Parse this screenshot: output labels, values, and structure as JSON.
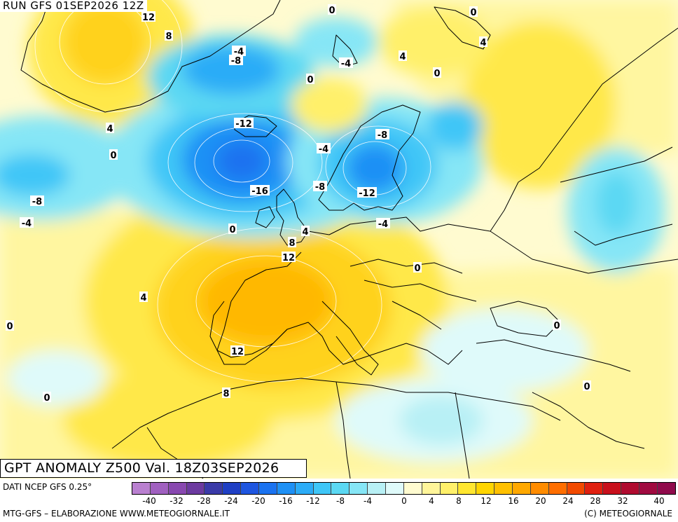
{
  "run_label": "RUN GFS 01SEP2026 12Z",
  "title": "GPT ANOMALY Z500 Val. 18Z03SEP2026",
  "credits": {
    "data_source": "DATI NCEP GFS 0.25°",
    "processing": "MTG-GFS – ELABORAZIONE WWW.METEOGIORNALE.IT",
    "copyright": "(C) METEOGIORNALE"
  },
  "legend": {
    "colors": [
      "#b980d0",
      "#a060c0",
      "#8848b0",
      "#6c3aa0",
      "#3a3aa8",
      "#1f3fc4",
      "#1e55e0",
      "#1a72f0",
      "#1e90f5",
      "#2cacf7",
      "#3fc6f7",
      "#5bd8f3",
      "#86e6f6",
      "#b8f0f5",
      "#dffafa",
      "#fffbd0",
      "#fff59a",
      "#fff06a",
      "#ffe630",
      "#ffd500",
      "#ffc000",
      "#ffa800",
      "#ff8c00",
      "#ff6e00",
      "#f24a00",
      "#e02010",
      "#c8101c",
      "#b00c30",
      "#a00a40",
      "#900a4c"
    ],
    "ticks": [
      "-40",
      "-32",
      "-28",
      "-24",
      "-20",
      "-16",
      "-12",
      "-8",
      "-4",
      "0",
      "4",
      "8",
      "12",
      "16",
      "20",
      "24",
      "28",
      "32",
      "40"
    ]
  },
  "map_labels": [
    {
      "text": "12"
    },
    {
      "text": "8"
    },
    {
      "text": "0"
    },
    {
      "text": "0"
    },
    {
      "text": "4"
    },
    {
      "text": "-4"
    },
    {
      "text": "-8"
    },
    {
      "text": "-4"
    },
    {
      "text": "4"
    },
    {
      "text": "0"
    },
    {
      "text": "0"
    },
    {
      "text": "4"
    },
    {
      "text": "0"
    },
    {
      "text": "-12"
    },
    {
      "text": "-8"
    },
    {
      "text": "-4"
    },
    {
      "text": "-16"
    },
    {
      "text": "-8"
    },
    {
      "text": "-12"
    },
    {
      "text": "-8"
    },
    {
      "text": "-4"
    },
    {
      "text": "0"
    },
    {
      "text": "-4"
    },
    {
      "text": "4"
    },
    {
      "text": "8"
    },
    {
      "text": "12"
    },
    {
      "text": "0"
    },
    {
      "text": "4"
    },
    {
      "text": "0"
    },
    {
      "text": "0"
    },
    {
      "text": "12"
    },
    {
      "text": "8"
    },
    {
      "text": "0"
    },
    {
      "text": "0"
    }
  ]
}
